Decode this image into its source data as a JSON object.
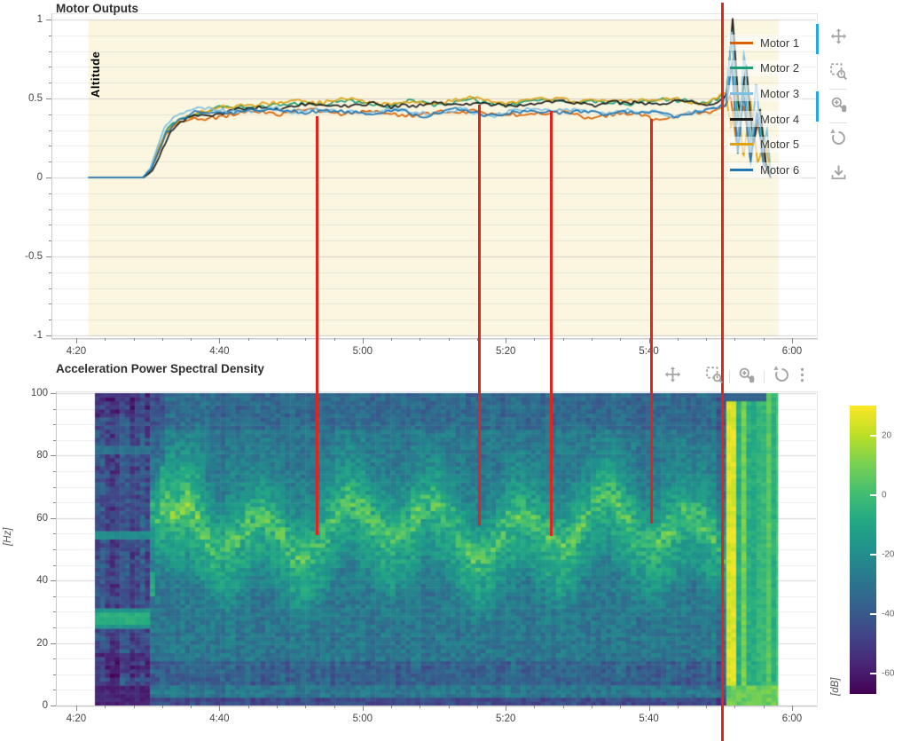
{
  "top_chart": {
    "title": "Motor Outputs",
    "mode_label": "Altitude",
    "mode_band_color": "#fbf6df",
    "mode_label_color": "#d9bc2b",
    "y_ticks": [
      "1",
      "0.5",
      "0",
      "-0.5",
      "-1"
    ],
    "x_ticks": [
      "4:20",
      "4:40",
      "5:00",
      "5:20",
      "5:40",
      "6:00"
    ],
    "legend": [
      {
        "label": "Motor 1",
        "color": "#d95f02"
      },
      {
        "label": "Motor 2",
        "color": "#1b9e77"
      },
      {
        "label": "Motor 3",
        "color": "#7ec0e4"
      },
      {
        "label": "Motor 4",
        "color": "#1c1c1c"
      },
      {
        "label": "Motor 5",
        "color": "#e0a112"
      },
      {
        "label": "Motor 6",
        "color": "#2077b4"
      }
    ]
  },
  "bottom_chart": {
    "title": "Acceleration Power Spectral Density",
    "y_unit_label": "[Hz]",
    "y_ticks": [
      "0",
      "20",
      "40",
      "60",
      "80",
      "100"
    ],
    "x_ticks": [
      "4:20",
      "4:40",
      "5:00",
      "5:20",
      "5:40",
      "6:00"
    ],
    "colorbar": {
      "unit_label": "[dB]",
      "tick_labels": [
        "20",
        "0",
        "-20",
        "-40",
        "-60"
      ],
      "tick_values": [
        20,
        0,
        -20,
        -40,
        -60
      ],
      "db_range": [
        -67,
        30
      ]
    }
  },
  "toolbar_top": {
    "orientation": "vertical",
    "active_color": "#28a8e2",
    "tools": [
      {
        "name": "pan",
        "active": true
      },
      {
        "name": "box-zoom",
        "active": false
      },
      {
        "name": "wheel-zoom",
        "active": true
      },
      {
        "name": "reset",
        "active": false
      },
      {
        "name": "save",
        "active": false
      }
    ]
  },
  "toolbar_bottom": {
    "orientation": "horizontal",
    "tools": [
      {
        "name": "pan",
        "active": false
      },
      {
        "name": "box-zoom",
        "active": false
      },
      {
        "name": "wheel-zoom",
        "active": false
      },
      {
        "name": "reset",
        "active": false
      },
      {
        "name": "menu",
        "active": false
      }
    ]
  },
  "annotations": {
    "color": "#e3241d",
    "vlines": [
      {
        "time_s": 293.6,
        "start_value": 0.39,
        "end_hz": 54.5,
        "full_height": false
      },
      {
        "time_s": 316.3,
        "start_value": 0.46,
        "end_hz": 57.7,
        "full_height": false
      },
      {
        "time_s": 326.3,
        "start_value": 0.42,
        "end_hz": 54.3,
        "full_height": false
      },
      {
        "time_s": 340.3,
        "start_value": 0.37,
        "end_hz": 58.2,
        "full_height": false
      },
      {
        "time_s": 350.3,
        "start_value": 1.0,
        "end_hz": 0,
        "full_height": true
      }
    ]
  },
  "chart_data": [
    {
      "type": "line",
      "title": "Motor Outputs",
      "x_axis_time_range_s": [
        260,
        360
      ],
      "x_tick_labels": [
        "4:20",
        "4:40",
        "5:00",
        "5:20",
        "5:40",
        "6:00"
      ],
      "y_range": [
        -1,
        1
      ],
      "y_tick_values": [
        1,
        0.5,
        0,
        -0.5,
        -1
      ],
      "flight_mode_region": {
        "label": "Altitude",
        "t_start_s": 261.7,
        "t_end_s": 358.1
      },
      "noise_amp": 0.018,
      "series": [
        {
          "name": "Motor 1",
          "color": "#d95f02",
          "keyframes": [
            [
              261.7,
              0
            ],
            [
              269.3,
              0
            ],
            [
              270.3,
              0.04
            ],
            [
              271.3,
              0.14
            ],
            [
              272.5,
              0.27
            ],
            [
              274,
              0.33
            ],
            [
              276,
              0.36
            ],
            [
              279,
              0.385
            ],
            [
              283,
              0.4
            ],
            [
              288,
              0.415
            ],
            [
              295,
              0.42
            ],
            [
              302,
              0.405
            ],
            [
              308,
              0.4
            ],
            [
              313,
              0.415
            ],
            [
              316.5,
              0.43
            ],
            [
              318,
              0.385
            ],
            [
              322,
              0.4
            ],
            [
              327,
              0.415
            ],
            [
              331,
              0.395
            ],
            [
              336,
              0.4
            ],
            [
              341,
              0.385
            ],
            [
              344,
              0.375
            ],
            [
              347,
              0.41
            ],
            [
              349.5,
              0.43
            ],
            [
              350.6,
              0.46
            ],
            [
              351.4,
              0.52
            ],
            [
              352.2,
              0.22
            ],
            [
              353.2,
              0.46
            ],
            [
              354.2,
              0.14
            ],
            [
              355.2,
              0.34
            ],
            [
              356.2,
              0.1
            ],
            [
              357,
              0.03
            ]
          ]
        },
        {
          "name": "Motor 2",
          "color": "#1b9e77",
          "keyframes": [
            [
              261.7,
              0
            ],
            [
              269.3,
              0
            ],
            [
              270.4,
              0.05
            ],
            [
              271.5,
              0.17
            ],
            [
              272.8,
              0.3
            ],
            [
              274.5,
              0.37
            ],
            [
              277,
              0.41
            ],
            [
              280,
              0.435
            ],
            [
              284,
              0.45
            ],
            [
              290,
              0.465
            ],
            [
              296,
              0.475
            ],
            [
              303,
              0.465
            ],
            [
              310,
              0.47
            ],
            [
              315,
              0.49
            ],
            [
              318,
              0.465
            ],
            [
              323,
              0.475
            ],
            [
              328,
              0.49
            ],
            [
              333,
              0.475
            ],
            [
              338,
              0.48
            ],
            [
              343,
              0.49
            ],
            [
              347,
              0.475
            ],
            [
              349.8,
              0.5
            ],
            [
              350.8,
              0.52
            ],
            [
              351.6,
              0.9
            ],
            [
              352.4,
              0.35
            ],
            [
              353.4,
              0.6
            ],
            [
              354.4,
              0.18
            ],
            [
              355.4,
              0.4
            ],
            [
              356.4,
              0.08
            ],
            [
              357,
              0.02
            ]
          ]
        },
        {
          "name": "Motor 3",
          "color": "#7ec0e4",
          "keyframes": [
            [
              261.7,
              0
            ],
            [
              269.3,
              0
            ],
            [
              270.3,
              0.05
            ],
            [
              271.2,
              0.18
            ],
            [
              272.3,
              0.32
            ],
            [
              273.6,
              0.4
            ],
            [
              275.5,
              0.44
            ],
            [
              278,
              0.43
            ],
            [
              281,
              0.42
            ],
            [
              285,
              0.425
            ],
            [
              291,
              0.43
            ],
            [
              297,
              0.415
            ],
            [
              303,
              0.42
            ],
            [
              309,
              0.41
            ],
            [
              314,
              0.43
            ],
            [
              317,
              0.4
            ],
            [
              321,
              0.415
            ],
            [
              326,
              0.43
            ],
            [
              330,
              0.41
            ],
            [
              335,
              0.42
            ],
            [
              340,
              0.41
            ],
            [
              344,
              0.4
            ],
            [
              347.5,
              0.42
            ],
            [
              349.8,
              0.44
            ],
            [
              350.8,
              0.5
            ],
            [
              351.6,
              0.95
            ],
            [
              352.4,
              0.18
            ],
            [
              353.3,
              0.82
            ],
            [
              354.2,
              0.15
            ],
            [
              355,
              0.62
            ],
            [
              355.8,
              0.12
            ],
            [
              356.5,
              0.3
            ],
            [
              357,
              0.04
            ]
          ]
        },
        {
          "name": "Motor 4",
          "color": "#1c1c1c",
          "keyframes": [
            [
              261.7,
              0
            ],
            [
              269.4,
              0
            ],
            [
              270.6,
              0.04
            ],
            [
              271.8,
              0.15
            ],
            [
              273.2,
              0.28
            ],
            [
              275,
              0.35
            ],
            [
              277.5,
              0.39
            ],
            [
              281,
              0.42
            ],
            [
              285,
              0.44
            ],
            [
              291,
              0.455
            ],
            [
              297,
              0.465
            ],
            [
              304,
              0.455
            ],
            [
              311,
              0.46
            ],
            [
              315.5,
              0.48
            ],
            [
              318.5,
              0.455
            ],
            [
              323,
              0.465
            ],
            [
              329,
              0.48
            ],
            [
              334,
              0.465
            ],
            [
              339,
              0.47
            ],
            [
              344,
              0.48
            ],
            [
              348,
              0.47
            ],
            [
              350,
              0.49
            ],
            [
              350.9,
              0.55
            ],
            [
              351.7,
              1.0
            ],
            [
              352.6,
              0.4
            ],
            [
              353.6,
              0.7
            ],
            [
              354.6,
              0.2
            ],
            [
              355.5,
              0.45
            ],
            [
              356.4,
              0.06
            ],
            [
              357,
              0
            ]
          ]
        },
        {
          "name": "Motor 5",
          "color": "#e0a112",
          "keyframes": [
            [
              261.7,
              0
            ],
            [
              269.4,
              0
            ],
            [
              270.5,
              0.05
            ],
            [
              271.6,
              0.18
            ],
            [
              273,
              0.31
            ],
            [
              274.8,
              0.38
            ],
            [
              277.5,
              0.42
            ],
            [
              281,
              0.45
            ],
            [
              285,
              0.465
            ],
            [
              291,
              0.475
            ],
            [
              297,
              0.485
            ],
            [
              303,
              0.47
            ],
            [
              309,
              0.475
            ],
            [
              315,
              0.5
            ],
            [
              318,
              0.47
            ],
            [
              323,
              0.48
            ],
            [
              328,
              0.5
            ],
            [
              333,
              0.48
            ],
            [
              338,
              0.49
            ],
            [
              343,
              0.5
            ],
            [
              347,
              0.485
            ],
            [
              349.8,
              0.5
            ],
            [
              350.7,
              0.52
            ],
            [
              351.5,
              0.3
            ],
            [
              352.3,
              0.55
            ],
            [
              353.2,
              0.12
            ],
            [
              354.2,
              0.5
            ],
            [
              355.2,
              0.1
            ],
            [
              356.2,
              0.28
            ],
            [
              357,
              0.03
            ]
          ]
        },
        {
          "name": "Motor 6",
          "color": "#2077b4",
          "keyframes": [
            [
              261.7,
              0
            ],
            [
              269.3,
              0
            ],
            [
              270.4,
              0.05
            ],
            [
              271.4,
              0.16
            ],
            [
              272.6,
              0.3
            ],
            [
              274.2,
              0.37
            ],
            [
              276.5,
              0.4
            ],
            [
              280,
              0.415
            ],
            [
              285,
              0.42
            ],
            [
              291,
              0.425
            ],
            [
              297,
              0.41
            ],
            [
              303,
              0.415
            ],
            [
              309,
              0.405
            ],
            [
              314,
              0.425
            ],
            [
              317,
              0.395
            ],
            [
              322,
              0.41
            ],
            [
              327,
              0.425
            ],
            [
              331,
              0.405
            ],
            [
              336,
              0.415
            ],
            [
              341,
              0.4
            ],
            [
              344,
              0.39
            ],
            [
              347.5,
              0.42
            ],
            [
              349.8,
              0.44
            ],
            [
              350.8,
              0.47
            ],
            [
              351.6,
              0.72
            ],
            [
              352.4,
              0.15
            ],
            [
              353.3,
              0.55
            ],
            [
              354.2,
              0.1
            ],
            [
              355.1,
              0.42
            ],
            [
              356,
              0.08
            ],
            [
              357,
              0.02
            ]
          ]
        }
      ]
    },
    {
      "type": "heatmap",
      "title": "Acceleration Power Spectral Density",
      "x_axis_time_range_s": [
        260,
        360
      ],
      "data_time_range_s": [
        262.6,
        358.0
      ],
      "x_tick_labels": [
        "4:20",
        "4:40",
        "5:00",
        "5:20",
        "5:40",
        "6:00"
      ],
      "y_range_hz": [
        0,
        100
      ],
      "y_tick_values_hz": [
        0,
        20,
        40,
        60,
        80,
        100
      ],
      "value_unit": "dB",
      "value_range_db": [
        -67,
        30
      ],
      "colormap": "viridis",
      "colormap_stops": [
        "#440154",
        "#482475",
        "#414487",
        "#355f8d",
        "#2a788e",
        "#21918c",
        "#22a884",
        "#44bf70",
        "#7ad151",
        "#bddf26",
        "#fde725"
      ],
      "features": {
        "preflight": {
          "end_s": 270.2,
          "base_db": -45,
          "tone_lines_hz": [
            28,
            55,
            82
          ],
          "tone_db": [
            -6,
            -20,
            -30
          ],
          "dark_band_hz": [
            [
              0,
              6
            ],
            [
              9,
              17
            ]
          ]
        },
        "spoolup_sweep": {
          "t_start_s": 270.2,
          "t_end_s": 272.4,
          "hz_start": 28,
          "hz_end": 75
        },
        "flight_band": {
          "base_db": -29,
          "ridge_center_hz": 57,
          "ridge_wobble_hz": 7,
          "ridge_period_s": 12,
          "band_width_hz": 11,
          "peak_db": 0
        },
        "low_freq_dark_stripe_hz": [
          7,
          14
        ],
        "end_burst": {
          "t_start_s": 351,
          "t_end_s": 358,
          "bright_db_max": 28,
          "bottom_bright_hz": 6
        }
      }
    }
  ]
}
